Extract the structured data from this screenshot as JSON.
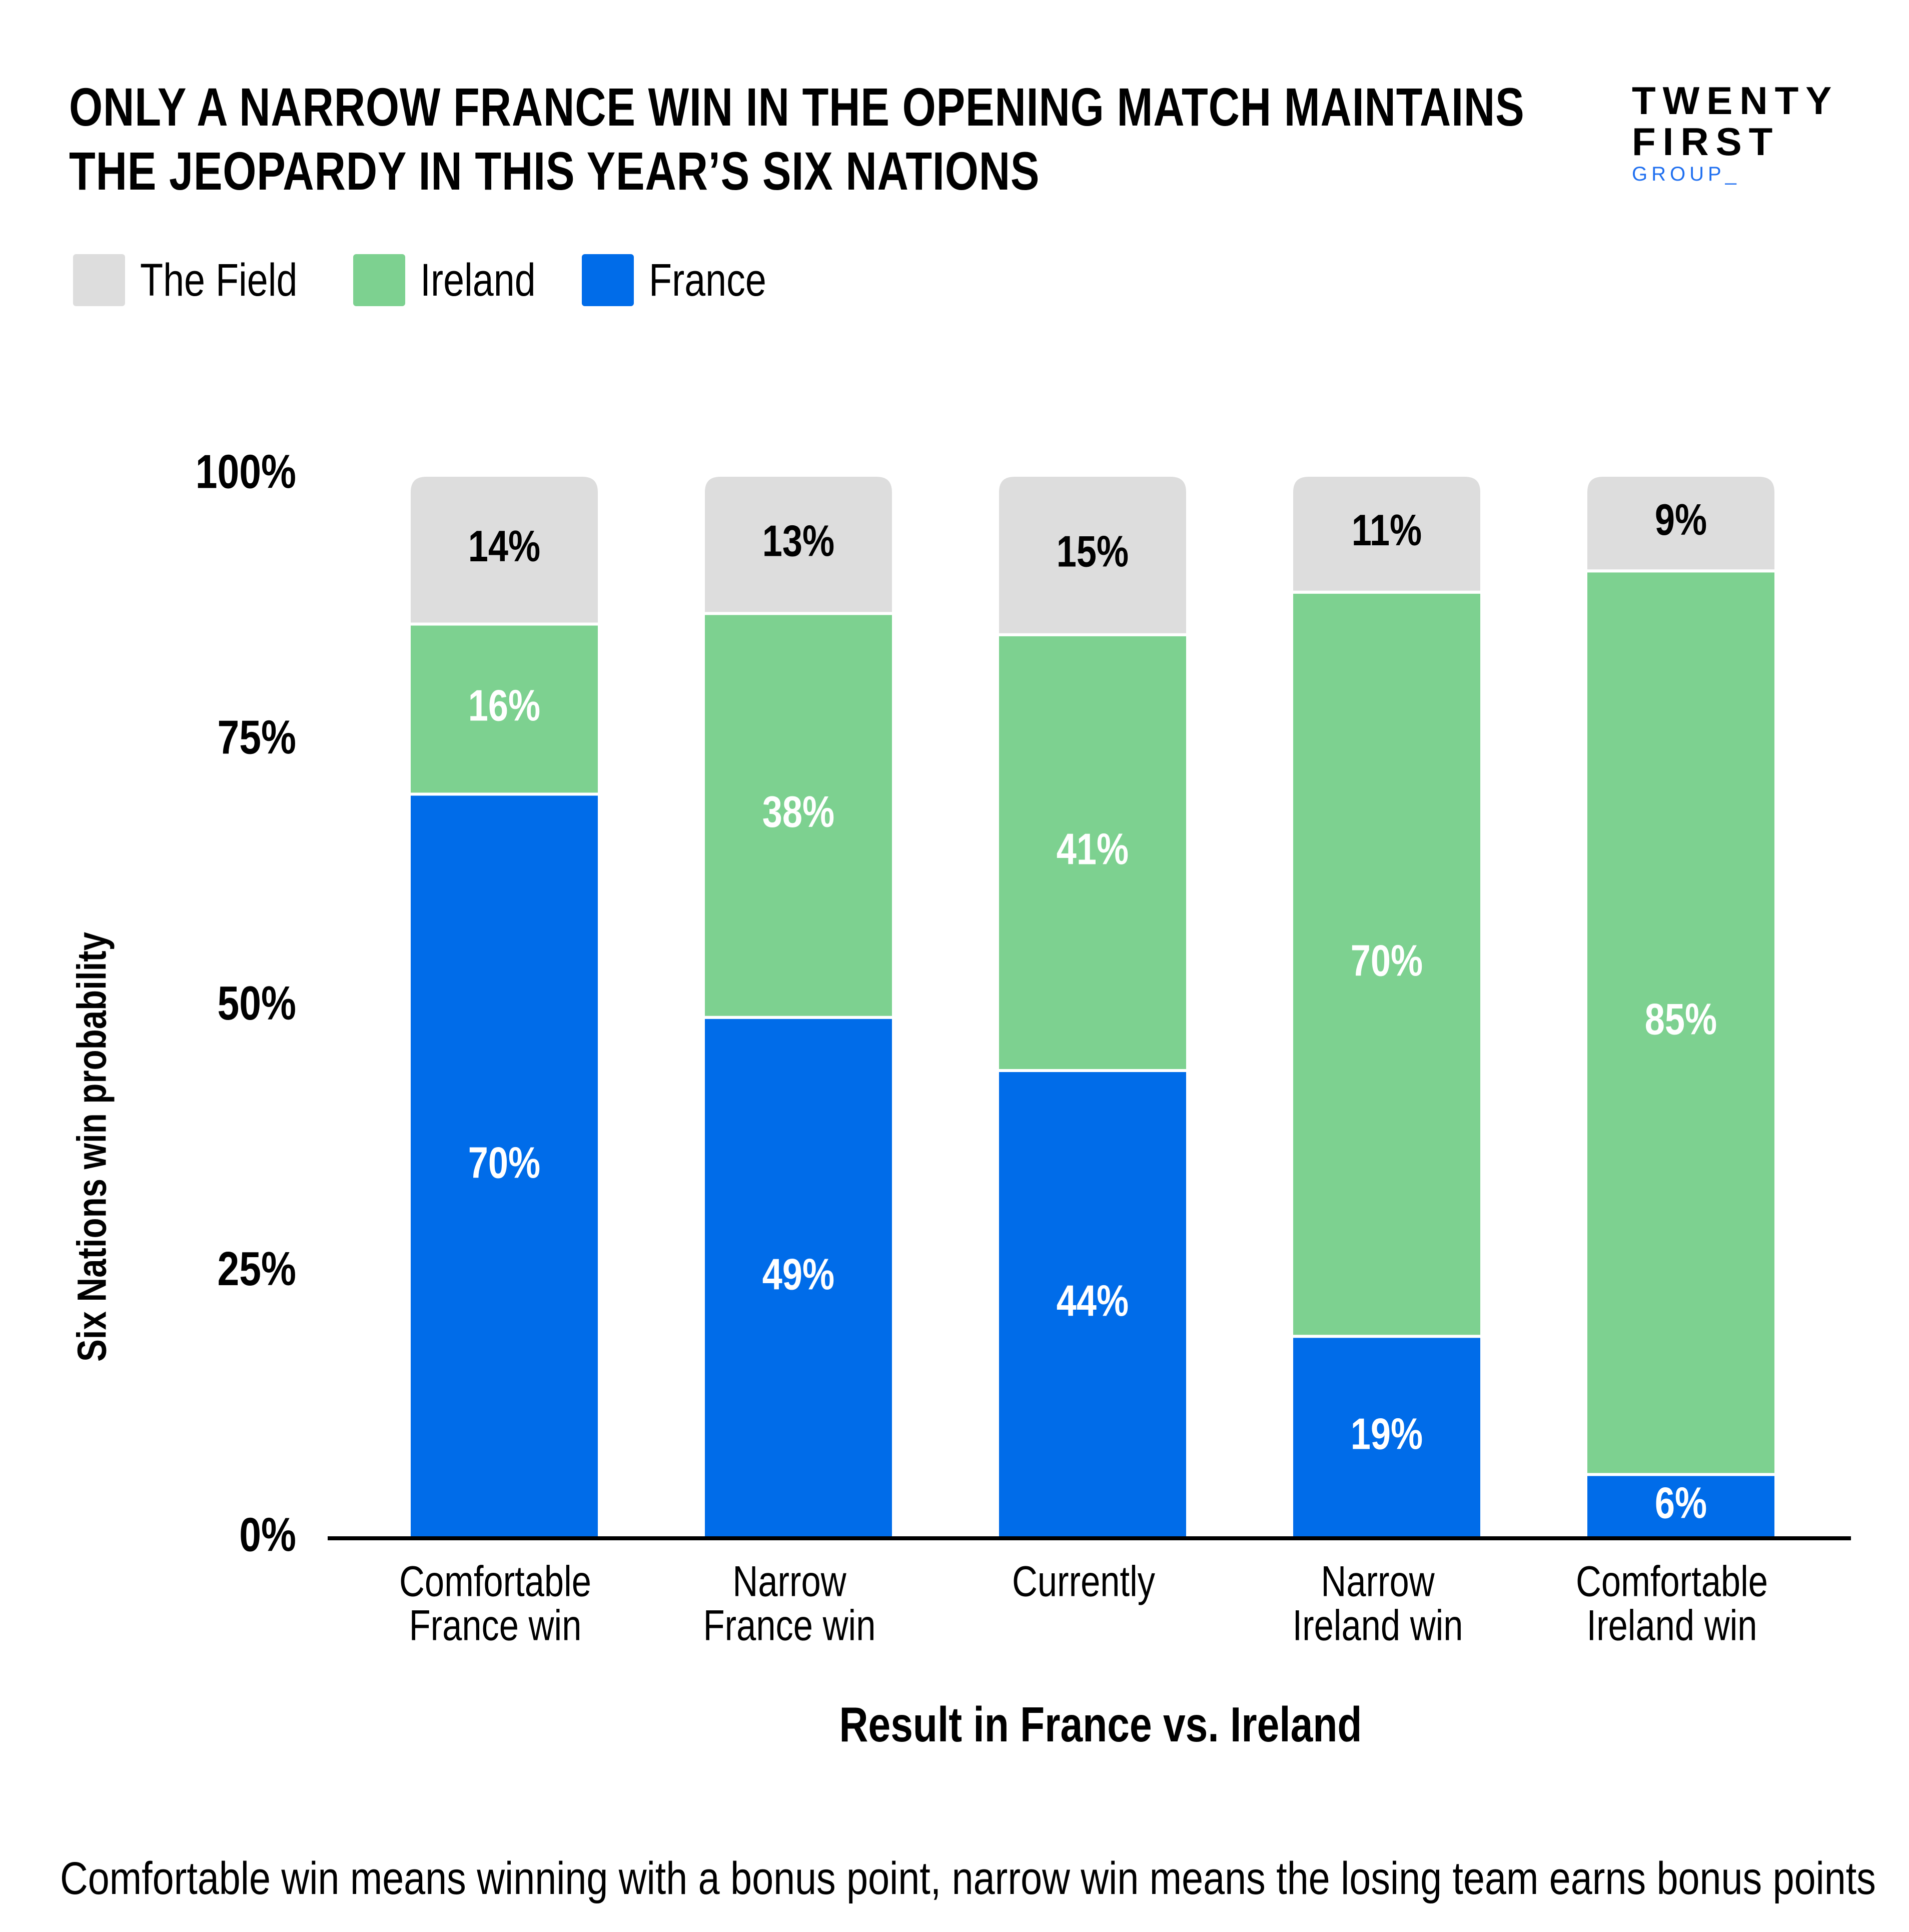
{
  "title": {
    "line1": "ONLY A NARROW FRANCE WIN IN THE OPENING MATCH MAINTAINS",
    "line2": "THE JEOPARDY IN THIS YEAR’S SIX NATIONS"
  },
  "logo": {
    "line1": "TWENTY",
    "line2": "FIRST",
    "line3": "GROUP_"
  },
  "legend": [
    {
      "label": "The Field",
      "color": "#dddddd"
    },
    {
      "label": "Ireland",
      "color": "#7dd190"
    },
    {
      "label": "France",
      "color": "#006ce9"
    }
  ],
  "footnote": "Comfortable win means winning with a bonus point, narrow win means the losing team earns bonus points",
  "chart_data": {
    "type": "bar",
    "stacked": true,
    "categories": [
      [
        "Comfortable",
        "France win"
      ],
      [
        "Narrow",
        "France win"
      ],
      [
        "Currently"
      ],
      [
        "Narrow",
        "Ireland win"
      ],
      [
        "Comfortable",
        "Ireland win"
      ]
    ],
    "series": [
      {
        "name": "France",
        "color": "#006ce9",
        "label_color": "#ffffff",
        "values": [
          70,
          49,
          44,
          19,
          6
        ]
      },
      {
        "name": "Ireland",
        "color": "#7dd190",
        "label_color": "#ffffff",
        "values": [
          16,
          38,
          41,
          70,
          85
        ]
      },
      {
        "name": "The Field",
        "color": "#dddddd",
        "label_color": "#000000",
        "values": [
          14,
          13,
          15,
          11,
          9
        ]
      }
    ],
    "ylabel": "Six Nations win probability",
    "xlabel": "Result in France vs. Ireland",
    "yticks": [
      "0%",
      "25%",
      "50%",
      "75%",
      "100%"
    ],
    "ylim": [
      0,
      100
    ],
    "grid": false,
    "legend_position": "top-left"
  }
}
